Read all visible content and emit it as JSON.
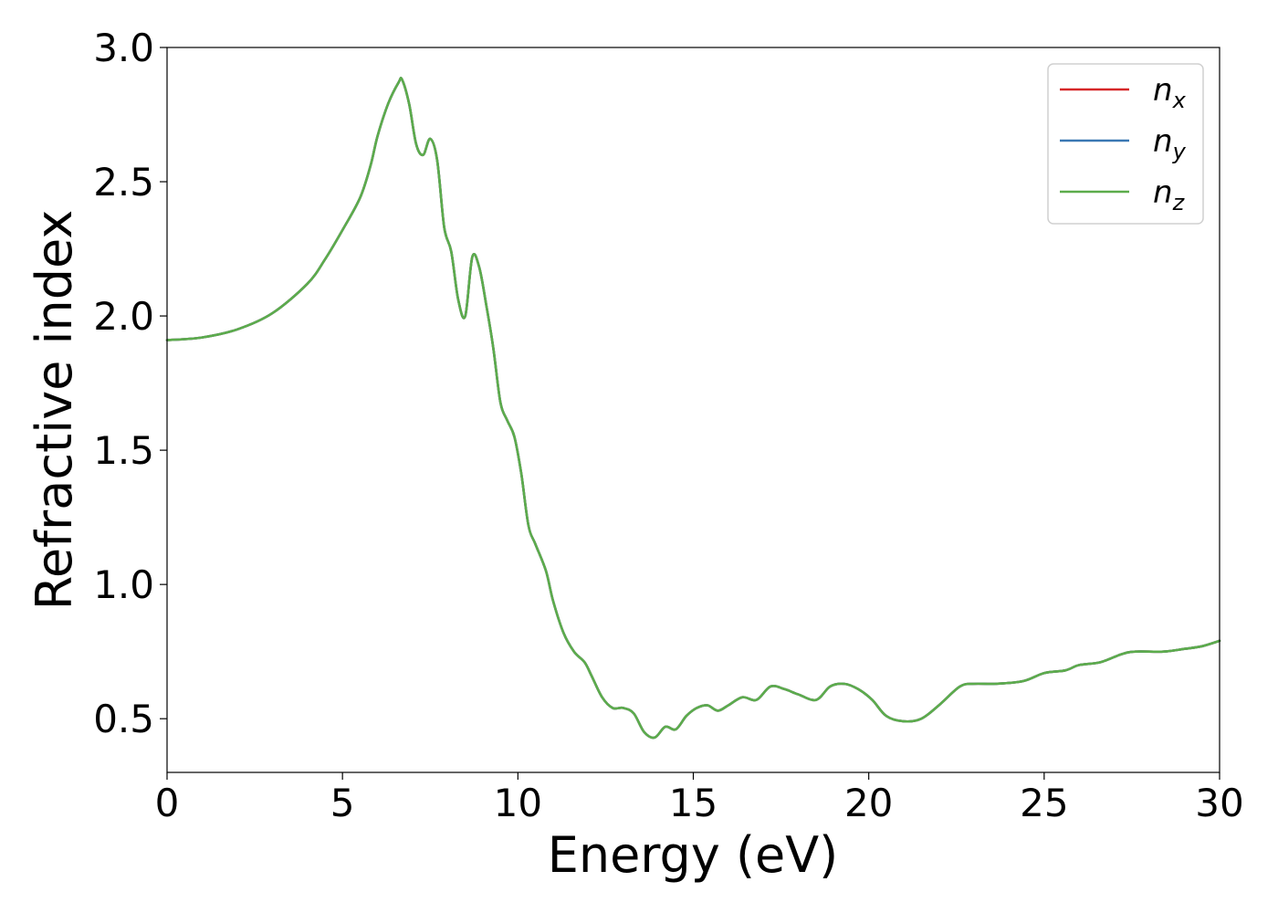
{
  "chart_data": {
    "type": "line",
    "xlabel": "Energy (eV)",
    "ylabel": "Refractive index",
    "xlim": [
      0,
      30
    ],
    "ylim": [
      0.3,
      3.0
    ],
    "xticks": [
      "0",
      "5",
      "10",
      "15",
      "20",
      "25",
      "30"
    ],
    "yticks": [
      "0.5",
      "1.0",
      "1.5",
      "2.0",
      "2.5",
      "3.0"
    ],
    "grid": false,
    "legend_position": "top-right",
    "x": [
      0,
      1,
      2,
      3,
      4,
      4.5,
      5,
      5.5,
      5.8,
      6.0,
      6.3,
      6.6,
      6.7,
      6.9,
      7.1,
      7.3,
      7.5,
      7.7,
      7.9,
      8.1,
      8.3,
      8.5,
      8.7,
      8.9,
      9.1,
      9.3,
      9.5,
      9.7,
      9.9,
      10.1,
      10.3,
      10.5,
      10.8,
      11.0,
      11.3,
      11.6,
      11.9,
      12.1,
      12.4,
      12.7,
      13.0,
      13.3,
      13.6,
      13.9,
      14.2,
      14.5,
      14.8,
      15.1,
      15.4,
      15.7,
      16.0,
      16.4,
      16.8,
      17.2,
      17.6,
      18.0,
      18.5,
      18.9,
      19.3,
      19.7,
      20.1,
      20.5,
      21.0,
      21.5,
      22.0,
      22.6,
      23.0,
      23.6,
      24.4,
      25.0,
      25.6,
      26.0,
      26.6,
      27.2,
      27.6,
      28.4,
      29.0,
      29.5,
      30.0
    ],
    "series": [
      {
        "name": "n_x",
        "label_base": "n",
        "label_sub": "x",
        "color": "#d62728",
        "values": [
          1.91,
          1.92,
          1.95,
          2.01,
          2.12,
          2.21,
          2.32,
          2.44,
          2.56,
          2.67,
          2.79,
          2.87,
          2.88,
          2.79,
          2.64,
          2.6,
          2.66,
          2.58,
          2.33,
          2.24,
          2.06,
          2.0,
          2.22,
          2.18,
          2.04,
          1.88,
          1.68,
          1.61,
          1.55,
          1.41,
          1.22,
          1.15,
          1.05,
          0.94,
          0.82,
          0.75,
          0.71,
          0.66,
          0.58,
          0.54,
          0.54,
          0.52,
          0.45,
          0.43,
          0.47,
          0.46,
          0.51,
          0.54,
          0.55,
          0.53,
          0.55,
          0.58,
          0.57,
          0.62,
          0.61,
          0.59,
          0.57,
          0.62,
          0.63,
          0.61,
          0.57,
          0.51,
          0.49,
          0.5,
          0.55,
          0.62,
          0.63,
          0.63,
          0.64,
          0.67,
          0.68,
          0.7,
          0.71,
          0.74,
          0.75,
          0.75,
          0.76,
          0.77,
          0.79
        ]
      },
      {
        "name": "n_y",
        "label_base": "n",
        "label_sub": "y",
        "color": "#3a78b3",
        "values": [
          1.91,
          1.92,
          1.95,
          2.01,
          2.12,
          2.21,
          2.32,
          2.44,
          2.56,
          2.67,
          2.79,
          2.87,
          2.88,
          2.79,
          2.64,
          2.6,
          2.66,
          2.58,
          2.33,
          2.24,
          2.06,
          2.0,
          2.22,
          2.18,
          2.04,
          1.88,
          1.68,
          1.61,
          1.55,
          1.41,
          1.22,
          1.15,
          1.05,
          0.94,
          0.82,
          0.75,
          0.71,
          0.66,
          0.58,
          0.54,
          0.54,
          0.52,
          0.45,
          0.43,
          0.47,
          0.46,
          0.51,
          0.54,
          0.55,
          0.53,
          0.55,
          0.58,
          0.57,
          0.62,
          0.61,
          0.59,
          0.57,
          0.62,
          0.63,
          0.61,
          0.57,
          0.51,
          0.49,
          0.5,
          0.55,
          0.62,
          0.63,
          0.63,
          0.64,
          0.67,
          0.68,
          0.7,
          0.71,
          0.74,
          0.75,
          0.75,
          0.76,
          0.77,
          0.79
        ]
      },
      {
        "name": "n_z",
        "label_base": "n",
        "label_sub": "z",
        "color": "#5cac4c",
        "values": [
          1.91,
          1.92,
          1.95,
          2.01,
          2.12,
          2.21,
          2.32,
          2.44,
          2.56,
          2.67,
          2.79,
          2.87,
          2.88,
          2.79,
          2.64,
          2.6,
          2.66,
          2.58,
          2.33,
          2.24,
          2.06,
          2.0,
          2.22,
          2.18,
          2.04,
          1.88,
          1.68,
          1.61,
          1.55,
          1.41,
          1.22,
          1.15,
          1.05,
          0.94,
          0.82,
          0.75,
          0.71,
          0.66,
          0.58,
          0.54,
          0.54,
          0.52,
          0.45,
          0.43,
          0.47,
          0.46,
          0.51,
          0.54,
          0.55,
          0.53,
          0.55,
          0.58,
          0.57,
          0.62,
          0.61,
          0.59,
          0.57,
          0.62,
          0.63,
          0.61,
          0.57,
          0.51,
          0.49,
          0.5,
          0.55,
          0.62,
          0.63,
          0.63,
          0.64,
          0.67,
          0.68,
          0.7,
          0.71,
          0.74,
          0.75,
          0.75,
          0.76,
          0.77,
          0.79
        ]
      }
    ]
  }
}
